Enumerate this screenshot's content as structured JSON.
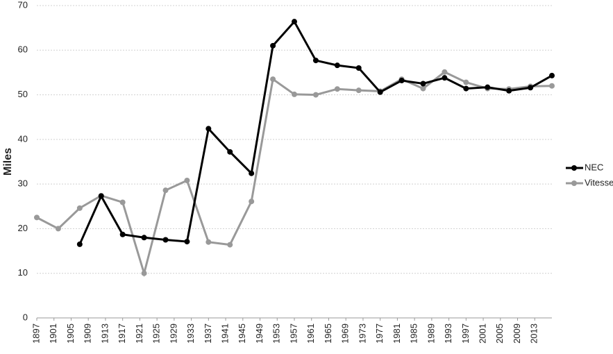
{
  "chart_data": {
    "type": "line",
    "y_label": "Miles",
    "x": [
      1897,
      1902,
      1907,
      1912,
      1917,
      1922,
      1927,
      1932,
      1937,
      1942,
      1947,
      1952,
      1957,
      1962,
      1967,
      1972,
      1977,
      1982,
      1987,
      1992,
      1997,
      2002,
      2007,
      2012,
      2017
    ],
    "series": [
      {
        "name": "NEC",
        "color": "#000000",
        "values": [
          null,
          null,
          16.5,
          27.3,
          18.7,
          18,
          17.5,
          17.1,
          42.4,
          37.2,
          32.4,
          61,
          66.4,
          57.7,
          56.6,
          56,
          50.6,
          53.2,
          52.5,
          53.8,
          51.4,
          51.7,
          50.9,
          51.6,
          54.3
        ]
      },
      {
        "name": "Vitesse",
        "color": "#999999",
        "values": [
          22.5,
          20,
          24.6,
          27.4,
          25.9,
          10,
          28.6,
          30.8,
          17,
          16.4,
          26.1,
          53.5,
          50.1,
          50,
          51.3,
          51,
          50.8,
          53.5,
          51.4,
          55.1,
          52.8,
          51.4,
          51.3,
          51.9,
          52
        ]
      }
    ],
    "xlim": [
      1897,
      2017
    ],
    "xticks": [
      1897,
      1901,
      1905,
      1909,
      1913,
      1917,
      1921,
      1925,
      1929,
      1933,
      1937,
      1941,
      1945,
      1949,
      1953,
      1957,
      1961,
      1965,
      1969,
      1973,
      1977,
      1981,
      1985,
      1989,
      1993,
      1997,
      2001,
      2005,
      2009,
      2013
    ],
    "ylim": [
      0,
      70
    ],
    "yticks": [
      0,
      10,
      20,
      30,
      40,
      50,
      60,
      70
    ],
    "grid": true,
    "legend": "right"
  }
}
